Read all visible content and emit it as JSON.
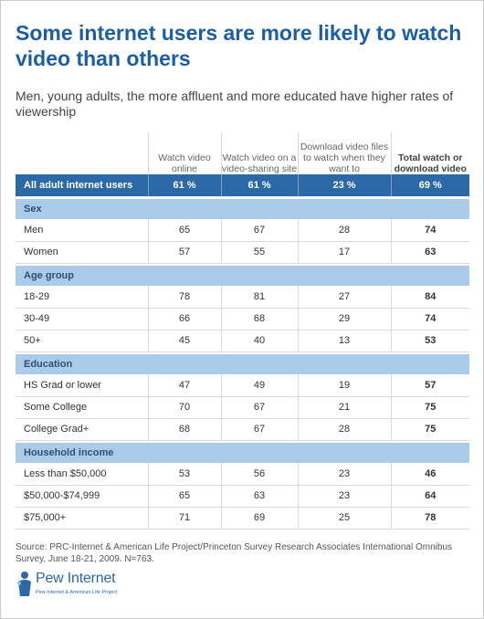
{
  "title": "Some internet users are more likely to watch video than others",
  "subtitle": "Men, young adults, the more affluent and more educated have higher rates of viewership",
  "chart_data": {
    "type": "table",
    "columns": [
      "",
      "Watch video online",
      "Watch video on a video-sharing site",
      "Download video files to watch when they want to",
      "Total watch or download video"
    ],
    "all_row": {
      "label": "All adult internet users",
      "values": [
        "61 %",
        "61 %",
        "23 %",
        "69 %"
      ]
    },
    "groups": [
      {
        "name": "Sex",
        "rows": [
          {
            "label": "Men",
            "values": [
              65,
              67,
              28,
              74
            ]
          },
          {
            "label": "Women",
            "values": [
              57,
              55,
              17,
              63
            ]
          }
        ]
      },
      {
        "name": "Age group",
        "rows": [
          {
            "label": "18-29",
            "values": [
              78,
              81,
              27,
              84
            ]
          },
          {
            "label": "30-49",
            "values": [
              66,
              68,
              29,
              74
            ]
          },
          {
            "label": "50+",
            "values": [
              45,
              40,
              13,
              53
            ]
          }
        ]
      },
      {
        "name": "Education",
        "rows": [
          {
            "label": "HS Grad or lower",
            "values": [
              47,
              49,
              19,
              57
            ]
          },
          {
            "label": "Some College",
            "values": [
              70,
              67,
              21,
              75
            ]
          },
          {
            "label": "College Grad+",
            "values": [
              68,
              67,
              28,
              75
            ]
          }
        ]
      },
      {
        "name": "Household income",
        "rows": [
          {
            "label": "Less than $50,000",
            "values": [
              53,
              56,
              23,
              46
            ]
          },
          {
            "label": "$50,000-$74,999",
            "values": [
              65,
              63,
              23,
              64
            ]
          },
          {
            "label": "$75,000+",
            "values": [
              71,
              69,
              25,
              78
            ]
          }
        ]
      }
    ]
  },
  "source": "Source: PRC-Internet & American Life Project/Princeton Survey Research Associates International Omnibus Survey, June 18-21, 2009. N=763.",
  "logo": {
    "name": "Pew Internet",
    "tagline": "Pew Internet & American Life Project"
  },
  "colors": {
    "title": "#1c5ea5",
    "header_row": "#2b68a8",
    "group_row": "#aacbea"
  }
}
